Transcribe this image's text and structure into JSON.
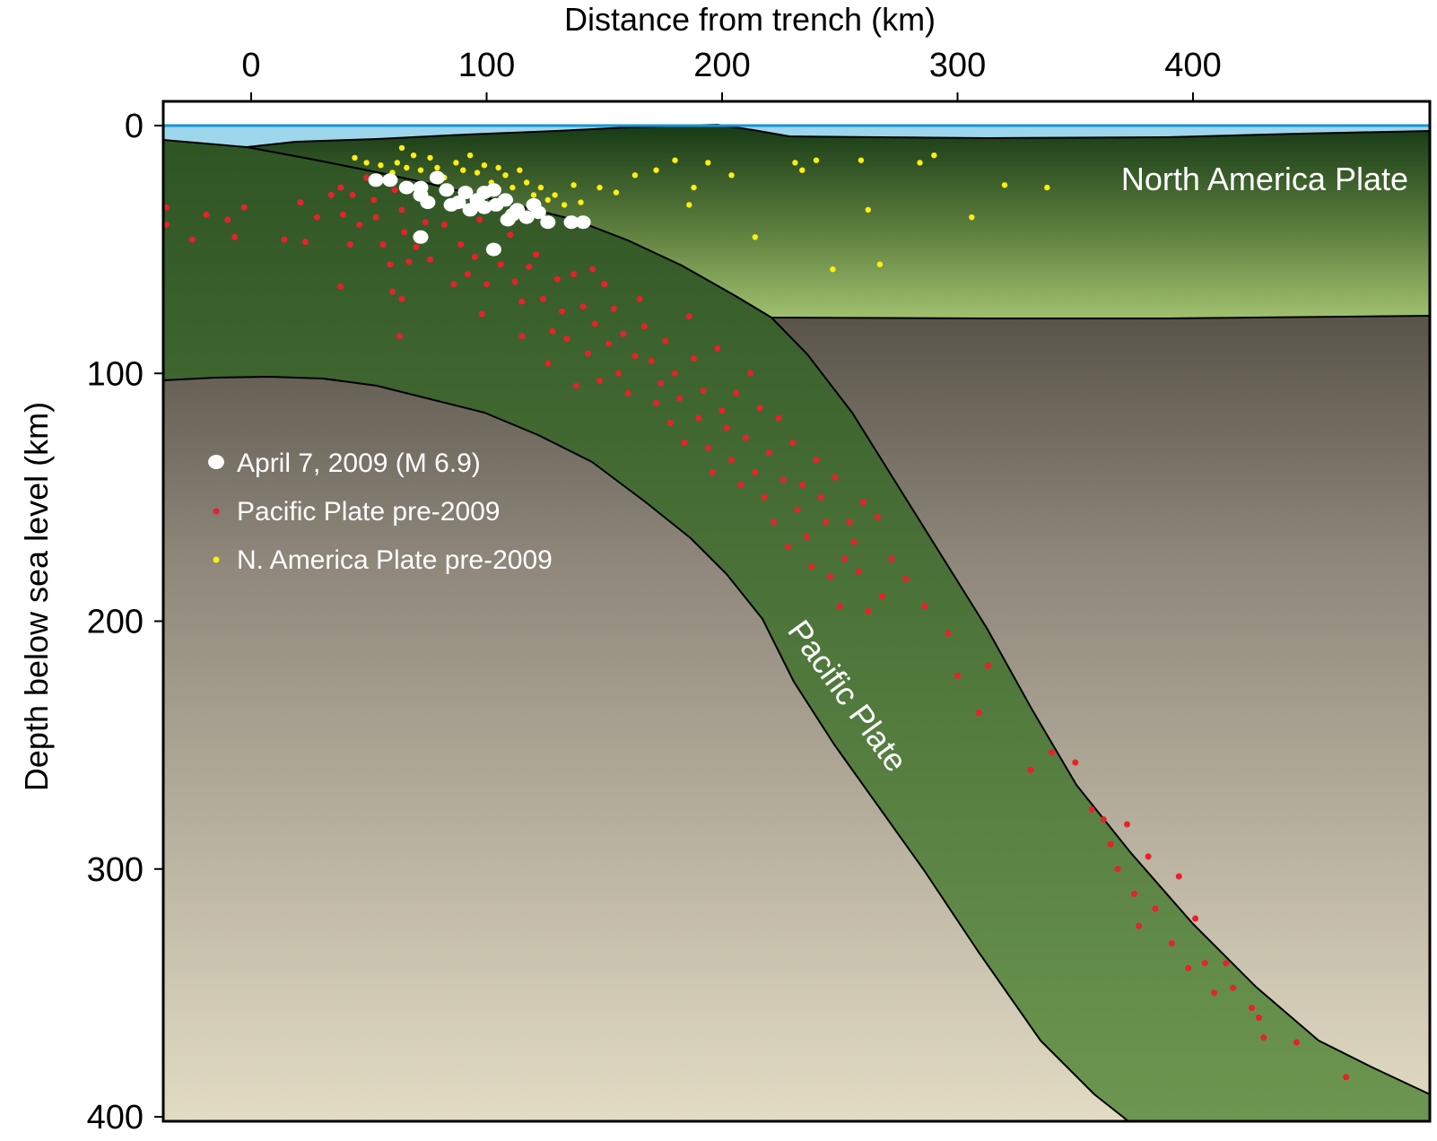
{
  "axes": {
    "x_title": "Distance from trench (km)",
    "y_title": "Depth below sea level (km)",
    "x_ticks": [
      {
        "value": 0,
        "label": "0"
      },
      {
        "value": 100,
        "label": "100"
      },
      {
        "value": 200,
        "label": "200"
      },
      {
        "value": 300,
        "label": "300"
      },
      {
        "value": 400,
        "label": "400"
      }
    ],
    "y_ticks": [
      {
        "value": 0,
        "label": "0"
      },
      {
        "value": 100,
        "label": "100"
      },
      {
        "value": 200,
        "label": "200"
      },
      {
        "value": 300,
        "label": "300"
      },
      {
        "value": 400,
        "label": "400"
      }
    ],
    "x_range_km": [
      -38,
      495
    ],
    "y_range_km": [
      0,
      400
    ]
  },
  "labels": {
    "north_america_plate": "North America Plate",
    "pacific_plate": "Pacific Plate"
  },
  "legend": [
    {
      "key": "april2009",
      "label": "April 7, 2009 (M 6.9)",
      "color": "#ffffff",
      "size": "large"
    },
    {
      "key": "pacific",
      "label": "Pacific Plate pre-2009",
      "color": "#e8212a",
      "size": "small"
    },
    {
      "key": "northamerica",
      "label": "N. America Plate pre-2009",
      "color": "#ffee10",
      "size": "small"
    }
  ],
  "colors": {
    "water": "#9ed6ec",
    "sea_level_line": "#1496d8",
    "north_america_top": "#173a16",
    "north_america_bottom": "#9fbe6d",
    "pacific_top": "#2f5424",
    "pacific_bottom": "#6c9650",
    "mantle_top": "#2a261f",
    "mantle_bottom": "#e3dcc4",
    "pacific_events": "#e8212a",
    "north_america_events": "#ffee10",
    "april2009_events": "#ffffff"
  },
  "events": {
    "april2009_approx_km": [
      [
        53,
        22
      ],
      [
        59,
        22
      ],
      [
        66,
        25
      ],
      [
        72,
        25
      ],
      [
        79,
        21
      ],
      [
        72,
        28
      ],
      [
        83,
        26
      ],
      [
        91,
        27
      ],
      [
        88,
        31
      ],
      [
        99,
        27
      ],
      [
        96,
        30
      ],
      [
        104,
        32
      ],
      [
        99,
        33
      ],
      [
        113,
        34
      ],
      [
        108,
        30
      ],
      [
        111,
        36
      ],
      [
        117,
        37
      ],
      [
        120,
        32
      ],
      [
        122,
        35
      ],
      [
        126,
        39
      ],
      [
        136,
        39
      ],
      [
        141,
        39
      ],
      [
        93,
        34
      ],
      [
        103,
        26
      ],
      [
        75,
        31
      ],
      [
        109,
        38
      ],
      [
        85,
        32
      ],
      [
        72,
        45
      ],
      [
        103,
        50
      ]
    ],
    "pacific_pre2009_approx_km": [
      [
        -36,
        33
      ],
      [
        -36,
        40
      ],
      [
        -25,
        46
      ],
      [
        -19,
        36
      ],
      [
        -10,
        38
      ],
      [
        -7,
        45
      ],
      [
        -3,
        33
      ],
      [
        14,
        46
      ],
      [
        23,
        47
      ],
      [
        21,
        31
      ],
      [
        28,
        37
      ],
      [
        34,
        28
      ],
      [
        38,
        25
      ],
      [
        39,
        36
      ],
      [
        42,
        48
      ],
      [
        46,
        40
      ],
      [
        43,
        28
      ],
      [
        49,
        21
      ],
      [
        52,
        30
      ],
      [
        53,
        37
      ],
      [
        56,
        48
      ],
      [
        59,
        56
      ],
      [
        61,
        26
      ],
      [
        64,
        34
      ],
      [
        65,
        43
      ],
      [
        67,
        55
      ],
      [
        60,
        67
      ],
      [
        70,
        49
      ],
      [
        74,
        39
      ],
      [
        76,
        54
      ],
      [
        82,
        40
      ],
      [
        86,
        64
      ],
      [
        89,
        48
      ],
      [
        92,
        60
      ],
      [
        95,
        53
      ],
      [
        97,
        38
      ],
      [
        98,
        76
      ],
      [
        100,
        64
      ],
      [
        104,
        49
      ],
      [
        106,
        56
      ],
      [
        110,
        44
      ],
      [
        112,
        63
      ],
      [
        115,
        71
      ],
      [
        115,
        85
      ],
      [
        118,
        57
      ],
      [
        121,
        52
      ],
      [
        124,
        70
      ],
      [
        126,
        96
      ],
      [
        128,
        83
      ],
      [
        130,
        62
      ],
      [
        132,
        75
      ],
      [
        134,
        86
      ],
      [
        137,
        60
      ],
      [
        138,
        105
      ],
      [
        141,
        73
      ],
      [
        143,
        92
      ],
      [
        145,
        58
      ],
      [
        146,
        80
      ],
      [
        148,
        103
      ],
      [
        150,
        64
      ],
      [
        152,
        88
      ],
      [
        154,
        74
      ],
      [
        156,
        100
      ],
      [
        158,
        84
      ],
      [
        160,
        108
      ],
      [
        163,
        93
      ],
      [
        165,
        70
      ],
      [
        167,
        81
      ],
      [
        170,
        95
      ],
      [
        172,
        112
      ],
      [
        174,
        104
      ],
      [
        176,
        87
      ],
      [
        178,
        120
      ],
      [
        180,
        100
      ],
      [
        182,
        110
      ],
      [
        184,
        128
      ],
      [
        186,
        77
      ],
      [
        188,
        94
      ],
      [
        190,
        118
      ],
      [
        192,
        107
      ],
      [
        194,
        130
      ],
      [
        196,
        140
      ],
      [
        198,
        90
      ],
      [
        200,
        115
      ],
      [
        202,
        122
      ],
      [
        204,
        135
      ],
      [
        206,
        108
      ],
      [
        208,
        145
      ],
      [
        210,
        126
      ],
      [
        212,
        100
      ],
      [
        214,
        140
      ],
      [
        216,
        114
      ],
      [
        218,
        150
      ],
      [
        220,
        132
      ],
      [
        222,
        160
      ],
      [
        224,
        118
      ],
      [
        226,
        143
      ],
      [
        228,
        170
      ],
      [
        230,
        128
      ],
      [
        232,
        155
      ],
      [
        234,
        145
      ],
      [
        236,
        166
      ],
      [
        238,
        178
      ],
      [
        240,
        135
      ],
      [
        242,
        150
      ],
      [
        244,
        160
      ],
      [
        246,
        182
      ],
      [
        248,
        142
      ],
      [
        250,
        194
      ],
      [
        252,
        175
      ],
      [
        254,
        160
      ],
      [
        256,
        168
      ],
      [
        258,
        180
      ],
      [
        260,
        152
      ],
      [
        262,
        196
      ],
      [
        266,
        158
      ],
      [
        268,
        190
      ],
      [
        272,
        175
      ],
      [
        278,
        183
      ],
      [
        286,
        194
      ],
      [
        296,
        205
      ],
      [
        300,
        222
      ],
      [
        309,
        237
      ],
      [
        313,
        218
      ],
      [
        331,
        260
      ],
      [
        340,
        253
      ],
      [
        350,
        257
      ],
      [
        357,
        276
      ],
      [
        362,
        280
      ],
      [
        365,
        290
      ],
      [
        368,
        300
      ],
      [
        372,
        282
      ],
      [
        375,
        310
      ],
      [
        377,
        323
      ],
      [
        381,
        295
      ],
      [
        384,
        316
      ],
      [
        391,
        330
      ],
      [
        394,
        303
      ],
      [
        398,
        340
      ],
      [
        401,
        320
      ],
      [
        405,
        338
      ],
      [
        409,
        350
      ],
      [
        414,
        338
      ],
      [
        417,
        348
      ],
      [
        425,
        356
      ],
      [
        428,
        360
      ],
      [
        430,
        368
      ],
      [
        444,
        370
      ],
      [
        465,
        384
      ],
      [
        38,
        65
      ],
      [
        63,
        85
      ],
      [
        64,
        70
      ]
    ],
    "northamerica_pre2009_approx_km": [
      [
        44,
        13
      ],
      [
        49,
        15
      ],
      [
        55,
        16
      ],
      [
        60,
        19
      ],
      [
        62,
        15
      ],
      [
        64,
        9
      ],
      [
        66,
        17
      ],
      [
        69,
        12
      ],
      [
        72,
        18
      ],
      [
        76,
        13
      ],
      [
        79,
        17
      ],
      [
        82,
        21
      ],
      [
        87,
        15
      ],
      [
        90,
        18
      ],
      [
        93,
        12
      ],
      [
        96,
        19
      ],
      [
        99,
        16
      ],
      [
        102,
        23
      ],
      [
        105,
        17
      ],
      [
        108,
        20
      ],
      [
        111,
        25
      ],
      [
        114,
        18
      ],
      [
        117,
        23
      ],
      [
        120,
        28
      ],
      [
        123,
        25
      ],
      [
        126,
        30
      ],
      [
        129,
        28
      ],
      [
        133,
        32
      ],
      [
        137,
        24
      ],
      [
        140,
        31
      ],
      [
        148,
        25
      ],
      [
        155,
        27
      ],
      [
        163,
        20
      ],
      [
        172,
        18
      ],
      [
        180,
        14
      ],
      [
        186,
        32
      ],
      [
        188,
        25
      ],
      [
        194,
        15
      ],
      [
        204,
        20
      ],
      [
        214,
        45
      ],
      [
        231,
        15
      ],
      [
        234,
        18
      ],
      [
        240,
        14
      ],
      [
        247,
        58
      ],
      [
        259,
        14
      ],
      [
        262,
        34
      ],
      [
        267,
        56
      ],
      [
        284,
        15
      ],
      [
        290,
        12
      ],
      [
        306,
        37
      ],
      [
        320,
        24
      ],
      [
        338,
        25
      ]
    ]
  }
}
